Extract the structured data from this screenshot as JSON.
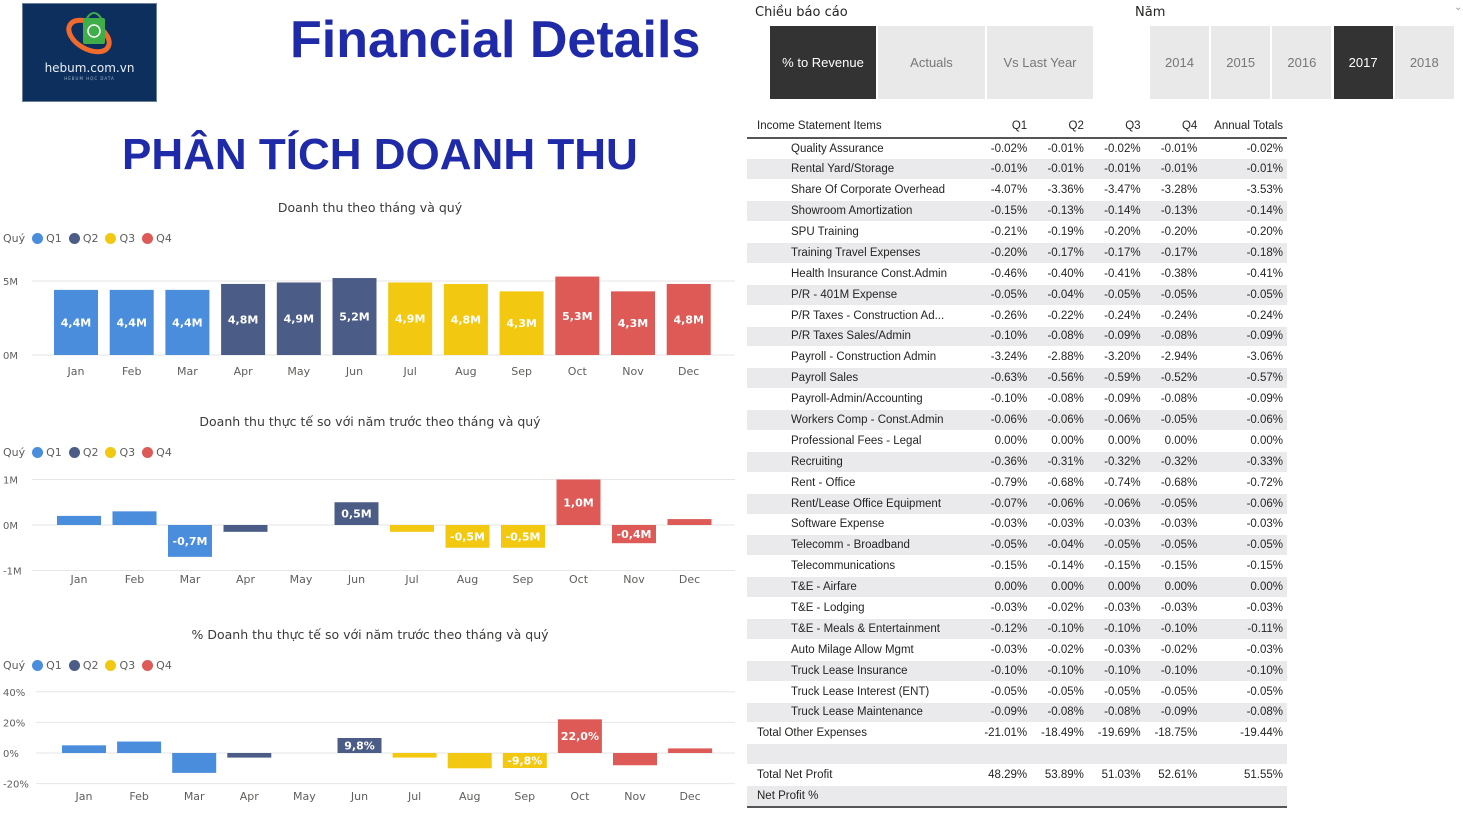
{
  "header": {
    "logo_text": "hebum.com.vn",
    "logo_sub": "HEBUM HỌC DATA",
    "title": "Financial Details",
    "subtitle": "PHÂN TÍCH DOANH THU"
  },
  "slicers": {
    "report_label": "Chiều báo cáo",
    "report_options": [
      {
        "label": "% to Revenue",
        "selected": true
      },
      {
        "label": "Actuals",
        "selected": false
      },
      {
        "label": "Vs Last Year",
        "selected": false
      }
    ],
    "year_label": "Năm",
    "year_options": [
      {
        "label": "2014",
        "selected": false
      },
      {
        "label": "2015",
        "selected": false
      },
      {
        "label": "2016",
        "selected": false
      },
      {
        "label": "2017",
        "selected": true
      },
      {
        "label": "2018",
        "selected": false
      }
    ]
  },
  "legend": {
    "title": "Quý",
    "items": [
      "Q1",
      "Q2",
      "Q3",
      "Q4"
    ]
  },
  "colors": {
    "Q1": "#4a8ddc",
    "Q2": "#4b5c87",
    "Q3": "#f2c811",
    "Q4": "#dd5a56"
  },
  "chart_data": [
    {
      "type": "bar",
      "title": "Doanh thu theo tháng và quý",
      "categories": [
        "Jan",
        "Feb",
        "Mar",
        "Apr",
        "May",
        "Jun",
        "Jul",
        "Aug",
        "Sep",
        "Oct",
        "Nov",
        "Dec"
      ],
      "quarter": [
        "Q1",
        "Q1",
        "Q1",
        "Q2",
        "Q2",
        "Q2",
        "Q3",
        "Q3",
        "Q3",
        "Q4",
        "Q4",
        "Q4"
      ],
      "values": [
        4.4,
        4.4,
        4.4,
        4.8,
        4.9,
        5.2,
        4.9,
        4.8,
        4.3,
        5.3,
        4.3,
        4.8
      ],
      "data_labels": [
        "4,4M",
        "4,4M",
        "4,4M",
        "4,8M",
        "4,9M",
        "5,2M",
        "4,9M",
        "4,8M",
        "4,3M",
        "5,3M",
        "4,3M",
        "4,8M"
      ],
      "yticks": [
        "0M",
        "5M"
      ],
      "ytick_values": [
        0,
        5
      ],
      "unit": "M",
      "legend": "top-left",
      "grid": true
    },
    {
      "type": "bar",
      "title": "Doanh thu thực tế so với năm trước theo tháng và quý",
      "categories": [
        "Jan",
        "Feb",
        "Mar",
        "Apr",
        "May",
        "Jun",
        "Jul",
        "Aug",
        "Sep",
        "Oct",
        "Nov",
        "Dec"
      ],
      "quarter": [
        "Q1",
        "Q1",
        "Q1",
        "Q2",
        "Q2",
        "Q2",
        "Q3",
        "Q3",
        "Q3",
        "Q4",
        "Q4",
        "Q4"
      ],
      "values": [
        0.2,
        0.3,
        -0.7,
        -0.15,
        0,
        0.5,
        -0.15,
        -0.5,
        -0.5,
        1.0,
        -0.4,
        0.13
      ],
      "data_labels": [
        "",
        "",
        "-0,7M",
        "",
        "",
        "0,5M",
        "",
        "-0,5M",
        "-0,5M",
        "1,0M",
        "-0,4M",
        ""
      ],
      "yticks": [
        "-1M",
        "0M",
        "1M"
      ],
      "ytick_values": [
        -1,
        0,
        1
      ],
      "unit": "M",
      "legend": "top-left",
      "grid": true
    },
    {
      "type": "bar",
      "title": "% Doanh thu thực tế so với năm trước theo tháng và quý",
      "categories": [
        "Jan",
        "Feb",
        "Mar",
        "Apr",
        "May",
        "Jun",
        "Jul",
        "Aug",
        "Sep",
        "Oct",
        "Nov",
        "Dec"
      ],
      "quarter": [
        "Q1",
        "Q1",
        "Q1",
        "Q2",
        "Q2",
        "Q2",
        "Q3",
        "Q3",
        "Q3",
        "Q4",
        "Q4",
        "Q4"
      ],
      "values": [
        5,
        7.5,
        -13,
        -3,
        0,
        9.8,
        -3,
        -10,
        -9.8,
        22.0,
        -8,
        3
      ],
      "data_labels": [
        "",
        "",
        "",
        "",
        "",
        "9,8%",
        "",
        "",
        "-9,8%",
        "22,0%",
        "",
        ""
      ],
      "yticks": [
        "-20%",
        "0%",
        "20%",
        "40%"
      ],
      "ytick_values": [
        -20,
        0,
        20,
        40
      ],
      "unit": "%",
      "legend": "top-left",
      "grid": true
    }
  ],
  "table": {
    "columns": [
      "Income Statement Items",
      "Q1",
      "Q2",
      "Q3",
      "Q4",
      "Annual Totals"
    ],
    "rows": [
      [
        "Quality Assurance",
        "-0.02%",
        "-0.01%",
        "-0.02%",
        "-0.01%",
        "-0.02%"
      ],
      [
        "Rental Yard/Storage",
        "-0.01%",
        "-0.01%",
        "-0.01%",
        "-0.01%",
        "-0.01%"
      ],
      [
        "Share Of Corporate Overhead",
        "-4.07%",
        "-3.36%",
        "-3.47%",
        "-3.28%",
        "-3.53%"
      ],
      [
        "Showroom Amortization",
        "-0.15%",
        "-0.13%",
        "-0.14%",
        "-0.13%",
        "-0.14%"
      ],
      [
        "SPU Training",
        "-0.21%",
        "-0.19%",
        "-0.20%",
        "-0.20%",
        "-0.20%"
      ],
      [
        "Training Travel Expenses",
        "-0.20%",
        "-0.17%",
        "-0.17%",
        "-0.17%",
        "-0.18%"
      ],
      [
        "Health Insurance Const.Admin",
        "-0.46%",
        "-0.40%",
        "-0.41%",
        "-0.38%",
        "-0.41%"
      ],
      [
        "P/R - 401M Expense",
        "-0.05%",
        "-0.04%",
        "-0.05%",
        "-0.05%",
        "-0.05%"
      ],
      [
        "P/R Taxes - Construction Ad...",
        "-0.26%",
        "-0.22%",
        "-0.24%",
        "-0.24%",
        "-0.24%"
      ],
      [
        "P/R Taxes Sales/Admin",
        "-0.10%",
        "-0.08%",
        "-0.09%",
        "-0.08%",
        "-0.09%"
      ],
      [
        "Payroll - Construction Admin",
        "-3.24%",
        "-2.88%",
        "-3.20%",
        "-2.94%",
        "-3.06%"
      ],
      [
        "Payroll Sales",
        "-0.63%",
        "-0.56%",
        "-0.59%",
        "-0.52%",
        "-0.57%"
      ],
      [
        "Payroll-Admin/Accounting",
        "-0.10%",
        "-0.08%",
        "-0.09%",
        "-0.08%",
        "-0.09%"
      ],
      [
        "Workers Comp - Const.Admin",
        "-0.06%",
        "-0.06%",
        "-0.06%",
        "-0.05%",
        "-0.06%"
      ],
      [
        "Professional Fees - Legal",
        "0.00%",
        "0.00%",
        "0.00%",
        "0.00%",
        "0.00%"
      ],
      [
        "Recruiting",
        "-0.36%",
        "-0.31%",
        "-0.32%",
        "-0.32%",
        "-0.33%"
      ],
      [
        "Rent - Office",
        "-0.79%",
        "-0.68%",
        "-0.74%",
        "-0.68%",
        "-0.72%"
      ],
      [
        "Rent/Lease Office Equipment",
        "-0.07%",
        "-0.06%",
        "-0.06%",
        "-0.05%",
        "-0.06%"
      ],
      [
        "Software Expense",
        "-0.03%",
        "-0.03%",
        "-0.03%",
        "-0.03%",
        "-0.03%"
      ],
      [
        "Telecomm - Broadband",
        "-0.05%",
        "-0.04%",
        "-0.05%",
        "-0.05%",
        "-0.05%"
      ],
      [
        "Telecommunications",
        "-0.15%",
        "-0.14%",
        "-0.15%",
        "-0.15%",
        "-0.15%"
      ],
      [
        "T&E - Airfare",
        "0.00%",
        "0.00%",
        "0.00%",
        "0.00%",
        "0.00%"
      ],
      [
        "T&E - Lodging",
        "-0.03%",
        "-0.02%",
        "-0.03%",
        "-0.03%",
        "-0.03%"
      ],
      [
        "T&E - Meals & Entertainment",
        "-0.12%",
        "-0.10%",
        "-0.10%",
        "-0.10%",
        "-0.11%"
      ],
      [
        "Auto Milage Allow Mgmt",
        "-0.03%",
        "-0.02%",
        "-0.03%",
        "-0.02%",
        "-0.03%"
      ],
      [
        "Truck Lease Insurance",
        "-0.10%",
        "-0.10%",
        "-0.10%",
        "-0.10%",
        "-0.10%"
      ],
      [
        "Truck Lease Interest (ENT)",
        "-0.05%",
        "-0.05%",
        "-0.05%",
        "-0.05%",
        "-0.05%"
      ],
      [
        "Truck Lease Maintenance",
        "-0.09%",
        "-0.08%",
        "-0.08%",
        "-0.09%",
        "-0.08%"
      ]
    ],
    "totals": [
      [
        "Total Other Expenses",
        "-21.01%",
        "-18.49%",
        "-19.69%",
        "-18.75%",
        "-19.44%"
      ],
      [
        "",
        "",
        "",
        "",
        "",
        ""
      ],
      [
        "Total Net Profit",
        "48.29%",
        "53.89%",
        "51.03%",
        "52.61%",
        "51.55%"
      ],
      [
        "Net Profit %",
        "",
        "",
        "",
        "",
        ""
      ]
    ]
  }
}
